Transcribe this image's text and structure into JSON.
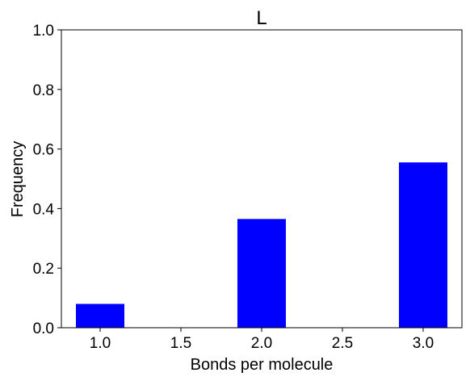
{
  "chart_data": {
    "type": "bar",
    "title": "L",
    "xlabel": "Bonds per molecule",
    "ylabel": "Frequency",
    "x": [
      1.0,
      2.0,
      3.0
    ],
    "values": [
      0.08,
      0.365,
      0.555
    ],
    "bar_width": 0.3,
    "xlim": [
      0.76,
      3.24
    ],
    "ylim": [
      0.0,
      1.0
    ],
    "xticks": [
      "1.0",
      "1.5",
      "2.0",
      "2.5",
      "3.0"
    ],
    "yticks": [
      "0.0",
      "0.2",
      "0.4",
      "0.6",
      "0.8",
      "1.0"
    ],
    "bar_color": "#0000ff",
    "grid": false,
    "legend": "none"
  }
}
